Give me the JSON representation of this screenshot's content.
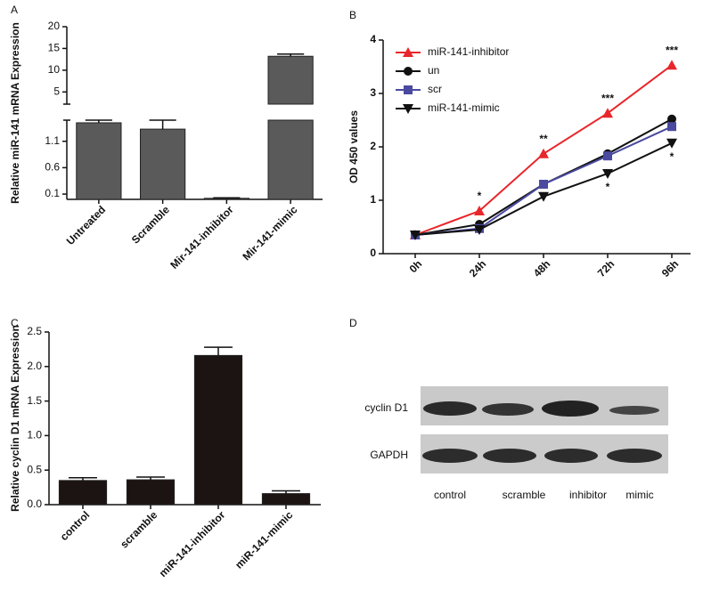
{
  "chart_data": [
    {
      "type": "bar",
      "panel": "A",
      "ylabel": "Relative miR-141 mRNA Expression",
      "categories": [
        "Untreated",
        "Scramble",
        "Mir-141-inhibitor",
        "Mir-141-mimic"
      ],
      "values": [
        1.45,
        1.33,
        0.02,
        13.2
      ],
      "errors": [
        0.05,
        0.17,
        0.01,
        0.5
      ],
      "color": "#5a5a5a",
      "ylim": [
        0,
        20
      ],
      "ybreak": [
        1.5,
        2.2
      ],
      "yticks": [
        0.1,
        0.6,
        1.1,
        5,
        10,
        15,
        20
      ]
    },
    {
      "type": "line",
      "panel": "B",
      "ylabel": "OD 450 values",
      "categories": [
        "0h",
        "24h",
        "48h",
        "72h",
        "96h"
      ],
      "series": [
        {
          "name": "miR-141-inhibitor",
          "color": "#e8262b",
          "marker": "triangle",
          "values": [
            0.35,
            0.8,
            1.87,
            2.63,
            3.53
          ]
        },
        {
          "name": "un",
          "color": "#111111",
          "marker": "circle",
          "values": [
            0.35,
            0.55,
            1.3,
            1.87,
            2.52
          ]
        },
        {
          "name": "scr",
          "color": "#4a4aa0",
          "marker": "square",
          "values": [
            0.35,
            0.47,
            1.3,
            1.83,
            2.38
          ]
        },
        {
          "name": "miR-141-mimic",
          "color": "#111111",
          "marker": "triangle-down",
          "values": [
            0.35,
            0.45,
            1.07,
            1.5,
            2.07
          ]
        }
      ],
      "annotations": [
        {
          "text": "*",
          "category": "24h",
          "series": "miR-141-inhibitor"
        },
        {
          "text": "**",
          "category": "48h",
          "series": "miR-141-inhibitor"
        },
        {
          "text": "***",
          "category": "72h",
          "series": "miR-141-inhibitor"
        },
        {
          "text": "***",
          "category": "96h",
          "series": "miR-141-inhibitor"
        },
        {
          "text": "*",
          "category": "72h",
          "series": "miR-141-mimic"
        },
        {
          "text": "*",
          "category": "96h",
          "series": "miR-141-mimic"
        }
      ],
      "ylim": [
        0,
        4
      ],
      "yticks": [
        0,
        1,
        2,
        3,
        4
      ],
      "legend": "top-left"
    },
    {
      "type": "bar",
      "panel": "C",
      "ylabel": "Relative cyclin D1 mRNA Expression",
      "categories": [
        "control",
        "scramble",
        "miR-141-inhibitor",
        "miR-141-mimic"
      ],
      "values": [
        0.35,
        0.36,
        2.16,
        0.16
      ],
      "errors": [
        0.04,
        0.04,
        0.12,
        0.04
      ],
      "color": "#1c1412",
      "ylim": [
        0,
        2.5
      ],
      "yticks": [
        {
          "value": 0,
          "label": "0.0"
        },
        0.5,
        {
          "value": 1,
          "label": "1.0"
        },
        1.5,
        {
          "value": 2,
          "label": "2.0"
        },
        2.5
      ]
    },
    {
      "type": "blot",
      "panel": "D",
      "rows": [
        "cyclin D1",
        "GAPDH"
      ],
      "lanes": [
        "control",
        "scramble",
        "inhibitor",
        "mimic"
      ]
    }
  ]
}
